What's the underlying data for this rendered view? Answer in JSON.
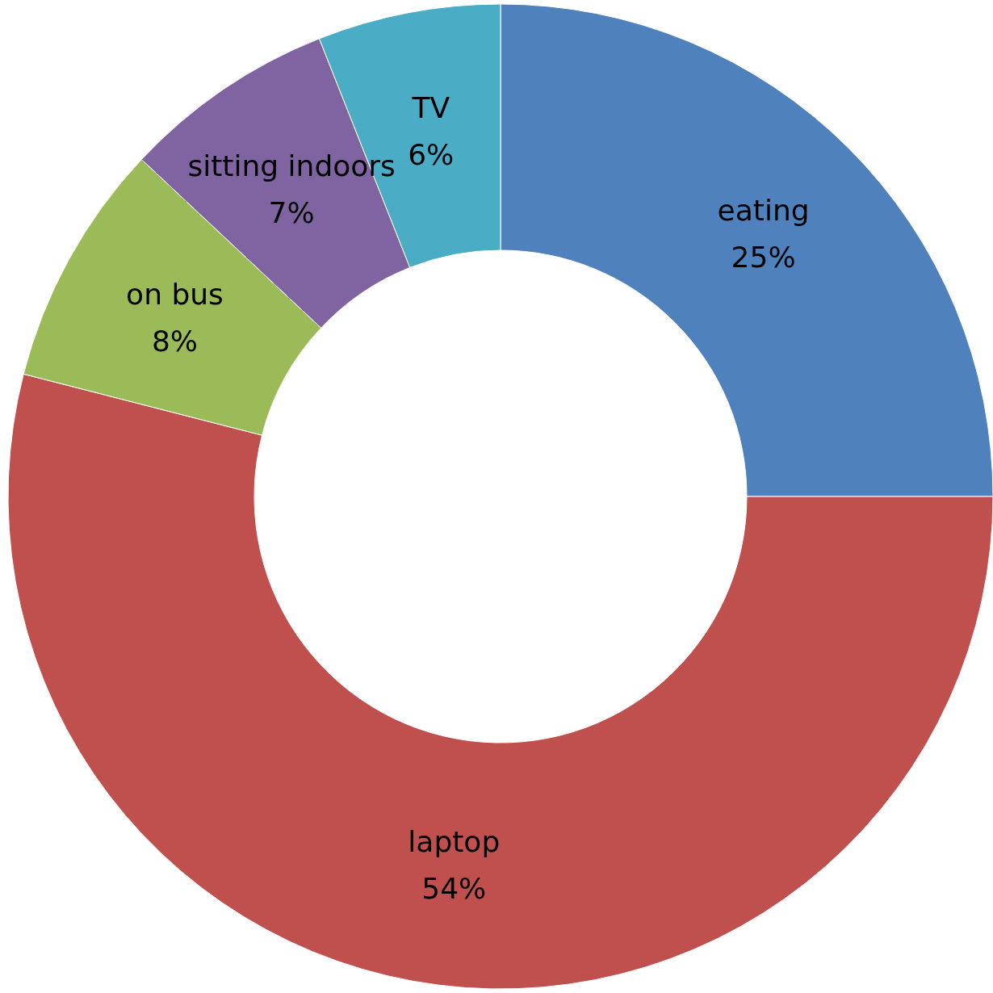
{
  "chart_data": {
    "type": "donut",
    "categories": [
      "eating",
      "laptop",
      "on bus",
      "sitting indoors",
      "TV"
    ],
    "values": [
      25,
      54,
      8,
      7,
      6
    ],
    "value_labels": [
      "25%",
      "54%",
      "8%",
      "7%",
      "6%"
    ],
    "colors": [
      "#4f81bd",
      "#c0504d",
      "#9bbb59",
      "#8064a2",
      "#4bacc6"
    ],
    "legend": false
  }
}
